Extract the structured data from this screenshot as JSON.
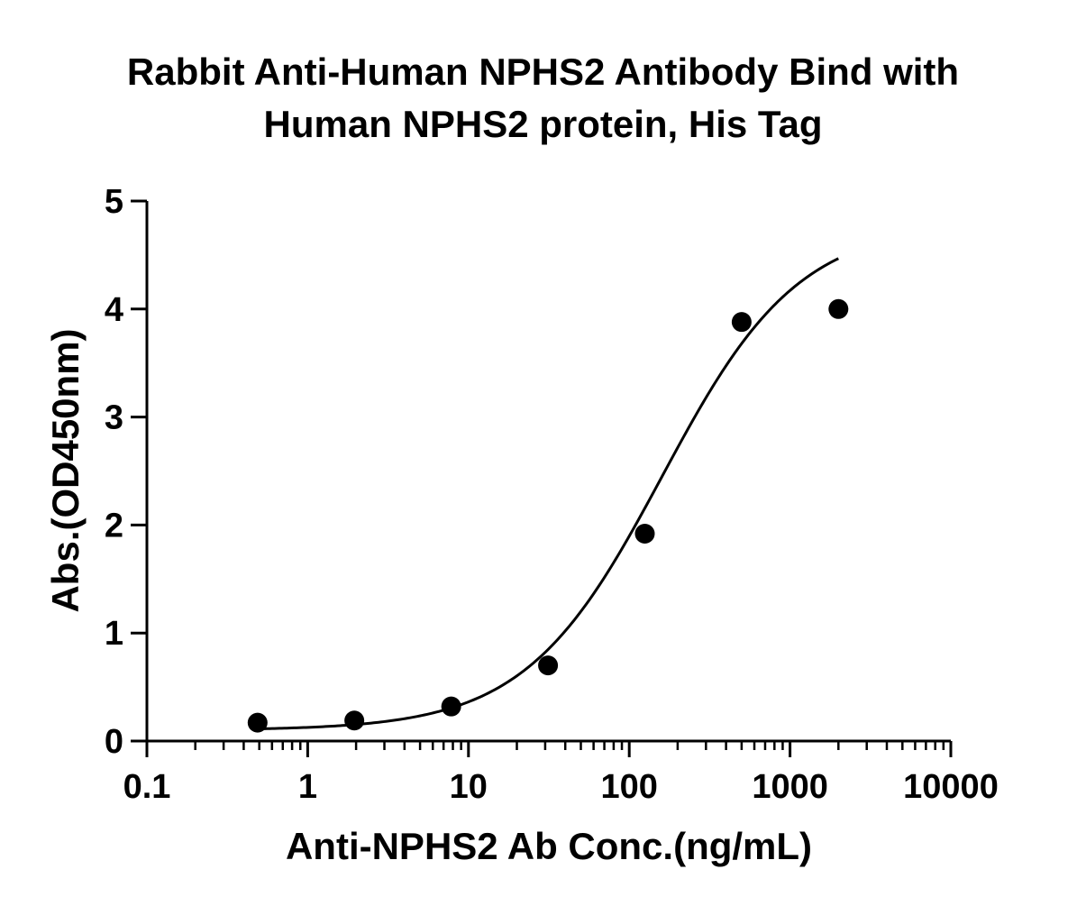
{
  "chart_data": {
    "type": "scatter",
    "title_lines": [
      "Rabbit Anti-Human NPHS2 Antibody Bind with",
      "Human NPHS2 protein, His Tag"
    ],
    "xlabel": "Anti-NPHS2 Ab Conc.(ng/mL)",
    "ylabel": "Abs.(OD450nm)",
    "x_scale": "log10",
    "xlim": [
      0.1,
      10000
    ],
    "ylim": [
      0,
      5
    ],
    "x_ticks": [
      {
        "value": 0.1,
        "label": "0.1"
      },
      {
        "value": 1,
        "label": "1"
      },
      {
        "value": 10,
        "label": "10"
      },
      {
        "value": 100,
        "label": "100"
      },
      {
        "value": 1000,
        "label": "1000"
      },
      {
        "value": 10000,
        "label": "10000"
      }
    ],
    "y_ticks": [
      {
        "value": 0,
        "label": "0"
      },
      {
        "value": 1,
        "label": "1"
      },
      {
        "value": 2,
        "label": "2"
      },
      {
        "value": 3,
        "label": "3"
      },
      {
        "value": 4,
        "label": "4"
      },
      {
        "value": 5,
        "label": "5"
      }
    ],
    "grid": false,
    "legend": "none",
    "series": [
      {
        "marker": "circle",
        "color": "#000000",
        "points": [
          {
            "x": 0.488,
            "y": 0.17
          },
          {
            "x": 1.95,
            "y": 0.19
          },
          {
            "x": 7.81,
            "y": 0.32
          },
          {
            "x": 31.25,
            "y": 0.7
          },
          {
            "x": 125,
            "y": 1.92
          },
          {
            "x": 500,
            "y": 3.88
          },
          {
            "x": 2000,
            "y": 4.0
          }
        ]
      }
    ],
    "fit_curve": {
      "model": "4PL",
      "bottom": 0.1,
      "top": 4.8,
      "ec50": 160,
      "hill": 1.02,
      "x_range": [
        0.488,
        2000
      ],
      "color": "#000000"
    }
  }
}
